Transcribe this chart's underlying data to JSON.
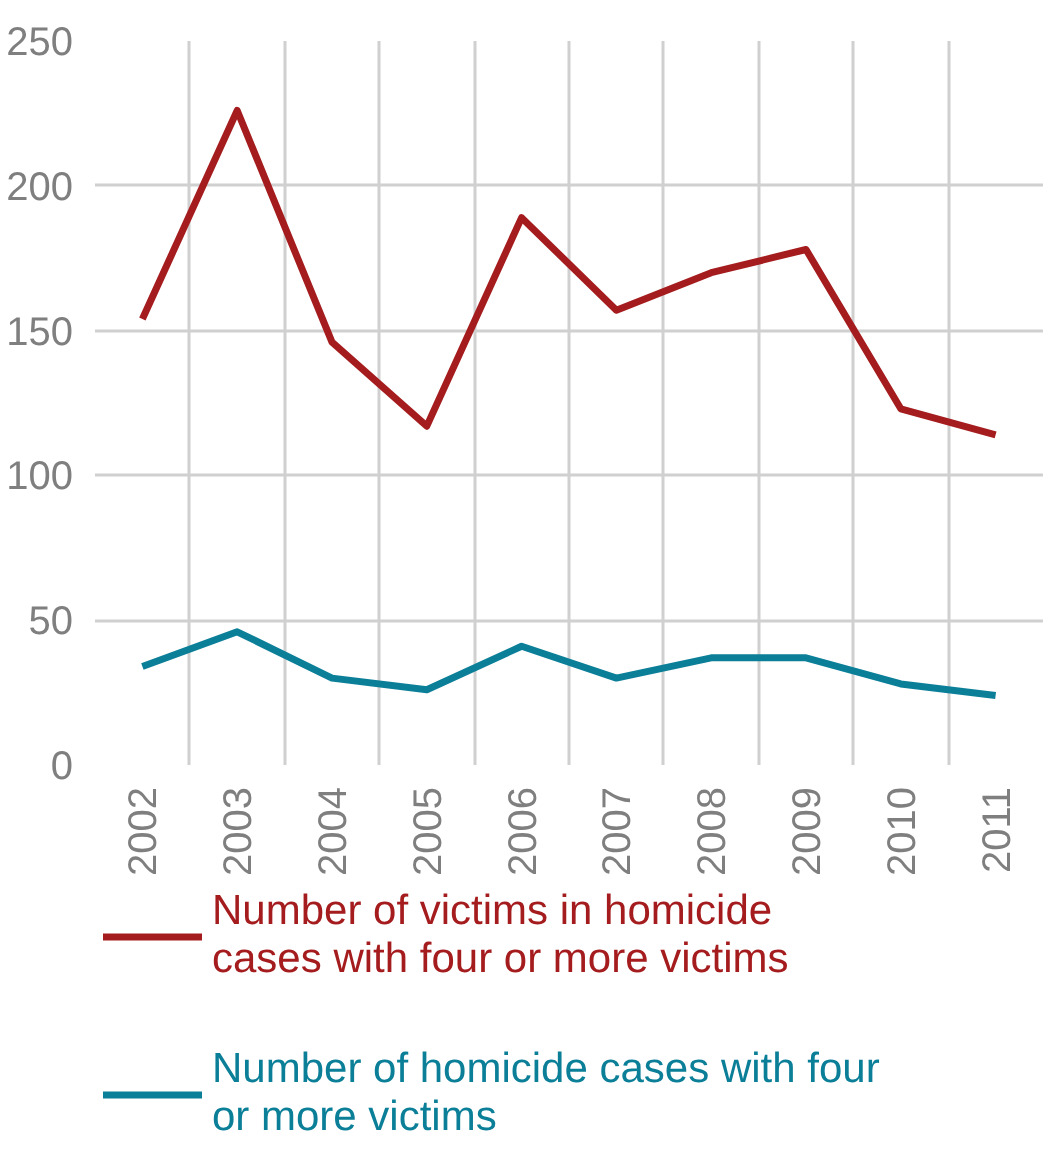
{
  "chart_data": {
    "type": "line",
    "categories": [
      "2002",
      "2003",
      "2004",
      "2005",
      "2006",
      "2007",
      "2008",
      "2009",
      "2010",
      "2011"
    ],
    "series": [
      {
        "name": "Number of victims in homicide cases with four or more victims",
        "color": "#a51c1e",
        "values": [
          154,
          226,
          146,
          117,
          189,
          157,
          170,
          178,
          123,
          114
        ]
      },
      {
        "name": "Number of homicide cases with four or more victims",
        "color": "#0b7f98",
        "values": [
          34,
          46,
          30,
          26,
          41,
          30,
          37,
          37,
          28,
          24
        ]
      }
    ],
    "ylim": [
      0,
      250
    ],
    "yticks": [
      0,
      50,
      100,
      150,
      200,
      250
    ],
    "grid": true,
    "legend": "bottom",
    "marker": "none",
    "line_style": "solid"
  }
}
